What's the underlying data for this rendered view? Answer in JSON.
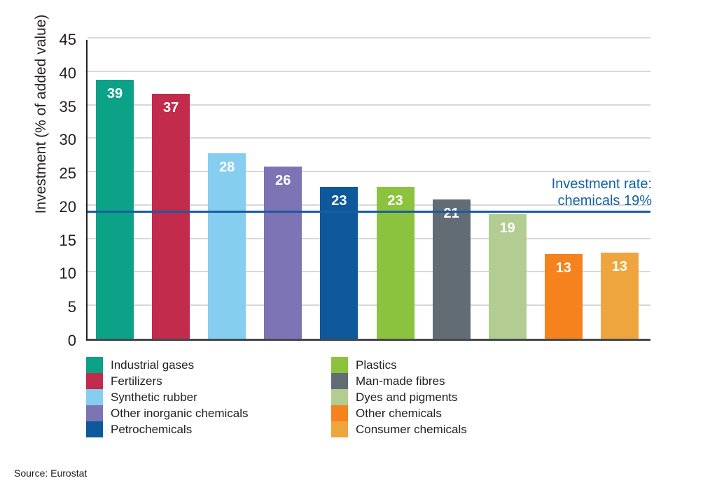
{
  "chart_data": {
    "type": "bar",
    "title": "",
    "ylabel": "Investment (% of added value)",
    "xlabel": "",
    "ylim": [
      0,
      45
    ],
    "yticks": [
      0,
      5,
      10,
      15,
      20,
      25,
      30,
      35,
      40,
      45
    ],
    "grid": true,
    "legend_position": "bottom",
    "categories": [
      "Industrial gases",
      "Fertilizers",
      "Synthetic rubber",
      "Other inorganic chemicals",
      "Petrochemicals",
      "Plastics",
      "Man-made fibres",
      "Dyes and pigments",
      "Other chemicals",
      "Consumer chemicals"
    ],
    "values": [
      39,
      37,
      28,
      26,
      23,
      23,
      21,
      19,
      13,
      13
    ],
    "drawn_values": [
      38.7,
      36.6,
      27.7,
      25.7,
      22.7,
      22.7,
      20.8,
      18.6,
      12.7,
      12.9
    ],
    "bar_colors": [
      "#0ca287",
      "#c22b4c",
      "#86ceef",
      "#7d74b5",
      "#0e599b",
      "#8cc33e",
      "#616c75",
      "#b2cc92",
      "#f6821e",
      "#efa53d"
    ],
    "reference_line": {
      "value": 19,
      "color": "#1a5c9f"
    }
  },
  "annotation": {
    "line1": "Investment rate:",
    "line2": "chemicals 19%",
    "color": "#1261a5"
  },
  "source_note": "Source: Eurostat",
  "colors": {
    "grid": "#d8d8d8",
    "axis_left": "#231f20",
    "axis_bottom": "#45494d",
    "tick_label": "#231f20",
    "value_label": "#ffffff",
    "legend_text": "#231f20",
    "background": "#ffffff"
  }
}
